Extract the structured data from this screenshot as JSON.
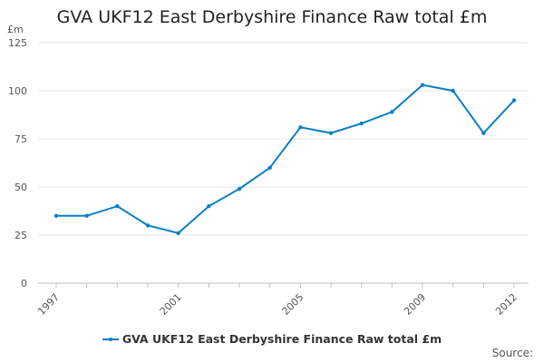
{
  "chart_data": {
    "type": "line",
    "title": "GVA UKF12 East Derbyshire Finance Raw total £m",
    "unit_label": "£m",
    "xlabel": "",
    "ylabel": "",
    "x": [
      1997,
      1998,
      1999,
      2000,
      2001,
      2002,
      2003,
      2004,
      2005,
      2006,
      2007,
      2008,
      2009,
      2010,
      2011,
      2012
    ],
    "x_tick_labels": [
      "1997",
      "2001",
      "2005",
      "2009",
      "2012"
    ],
    "x_tick_values": [
      1997,
      2001,
      2005,
      2009,
      2012
    ],
    "y_tick_labels": [
      "0",
      "25",
      "50",
      "75",
      "100",
      "125"
    ],
    "y_tick_values": [
      0,
      25,
      50,
      75,
      100,
      125
    ],
    "ylim": [
      0,
      125
    ],
    "xlim": [
      1997,
      2012
    ],
    "grid": true,
    "legend_position": "bottom",
    "series": [
      {
        "name": "GVA UKF12 East Derbyshire Finance Raw total £m",
        "color": "#0b80c3",
        "values": [
          35,
          35,
          40,
          30,
          26,
          40,
          49,
          60,
          81,
          78,
          83,
          89,
          103,
          100,
          78,
          95
        ]
      }
    ]
  },
  "source_label": "Source:"
}
